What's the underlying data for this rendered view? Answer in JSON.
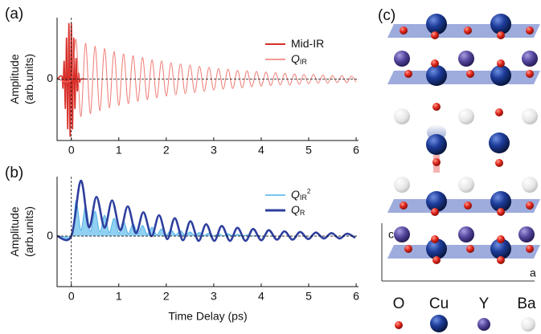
{
  "chart_data": [
    {
      "type": "line",
      "panel": "(a)",
      "ylabel": [
        "Amplitude",
        "(arb.units)"
      ],
      "xlim": [
        -0.3,
        6.05
      ],
      "xticks": [
        0,
        1,
        2,
        3,
        4,
        5,
        6
      ],
      "ylim": [
        -1.05,
        1.05
      ],
      "yticks": [
        0
      ],
      "series": [
        {
          "name": "Mid-IR",
          "color": "#d8302a",
          "width": 1.6,
          "x": [
            -0.3,
            -0.2,
            -0.175,
            -0.15,
            -0.125,
            -0.1,
            -0.075,
            -0.05,
            -0.025,
            0,
            0.025,
            0.05,
            0.075,
            0.1,
            0.125,
            0.15,
            0.175,
            0.2,
            0.3
          ],
          "values": [
            0,
            0.05,
            -0.15,
            0.3,
            -0.5,
            0.7,
            -0.85,
            0.95,
            -0.98,
            0.95,
            -0.85,
            0.7,
            -0.5,
            0.35,
            -0.2,
            0.1,
            -0.05,
            0,
            0
          ]
        },
        {
          "name": "Q",
          "subscript": "IR",
          "color": "#ef7a73",
          "width": 1,
          "x": [
            -0.3,
            0,
            0.1,
            0.2,
            0.3,
            0.4,
            0.5,
            0.6,
            0.7,
            0.8,
            0.9,
            1.0,
            1.1,
            1.2,
            1.3,
            1.4,
            1.5,
            1.6,
            1.7,
            1.8,
            1.9,
            2.0,
            2.1,
            2.2,
            2.3,
            2.4,
            2.5,
            2.6,
            2.7,
            2.8,
            2.9,
            3.0,
            3.1,
            3.2,
            3.3,
            3.4,
            3.5,
            3.6,
            3.7,
            3.8,
            3.9,
            4.0,
            4.1,
            4.2,
            4.3,
            4.4,
            4.5,
            4.6,
            4.7,
            4.8,
            4.9,
            5.0,
            5.1,
            5.2,
            5.3,
            5.4,
            5.5,
            5.6,
            5.7,
            5.8,
            5.9,
            6.0
          ],
          "values": [
            0,
            0,
            0.67,
            -0.64,
            0.61,
            -0.59,
            0.56,
            -0.54,
            0.52,
            -0.49,
            0.47,
            -0.45,
            0.43,
            -0.42,
            0.4,
            -0.38,
            0.37,
            -0.35,
            0.33,
            -0.32,
            0.31,
            -0.29,
            0.28,
            -0.27,
            0.26,
            -0.25,
            0.24,
            -0.23,
            0.22,
            -0.21,
            0.2,
            -0.19,
            0.18,
            -0.17,
            0.17,
            -0.16,
            0.15,
            -0.15,
            0.14,
            -0.13,
            0.13,
            -0.12,
            0.12,
            -0.11,
            0.11,
            -0.1,
            0.1,
            -0.1,
            0.09,
            -0.09,
            0.08,
            -0.08,
            0.08,
            -0.07,
            0.07,
            -0.07,
            0.06,
            -0.06,
            0.06,
            -0.06,
            0.05,
            -0.05
          ]
        }
      ]
    },
    {
      "type": "line",
      "panel": "(b)",
      "ylabel": [
        "Amplitude",
        "(arb.units)"
      ],
      "xlabel": "Time Delay (ps)",
      "xlim": [
        -0.3,
        6.05
      ],
      "xticks": [
        0,
        1,
        2,
        3,
        4,
        5,
        6
      ],
      "ylim": [
        -0.85,
        1
      ],
      "yticks": [
        0
      ],
      "series": [
        {
          "name": "Q",
          "subscript": "IR",
          "superscript": "2",
          "color": "#4fb2e8",
          "fill": "#7fc8f0",
          "width": 1,
          "x": [
            -0.3,
            0,
            0.1,
            0.2,
            0.3,
            0.4,
            0.5,
            0.6,
            0.7,
            0.8,
            0.9,
            1.0,
            1.1,
            1.2,
            1.3,
            1.4,
            1.5,
            1.6,
            1.7,
            1.8,
            1.9,
            2.0,
            2.1,
            2.2,
            2.3,
            2.4,
            2.5,
            2.6,
            2.7,
            2.8,
            2.9,
            3.0,
            3.1,
            3.2,
            3.3,
            3.4,
            3.5,
            3.6,
            3.7,
            3.8,
            3.9,
            4.0
          ],
          "values": [
            0,
            0,
            0.6,
            0.1,
            0.5,
            0.08,
            0.42,
            0.07,
            0.35,
            0.06,
            0.3,
            0.05,
            0.25,
            0.04,
            0.21,
            0.04,
            0.18,
            0.03,
            0.15,
            0.02,
            0.12,
            0.02,
            0.1,
            0.02,
            0.09,
            0.01,
            0.07,
            0.01,
            0.06,
            0.01,
            0.05,
            0,
            0.04,
            0,
            0.04,
            0,
            0.03,
            0,
            0.02,
            0,
            0.01,
            0
          ]
        },
        {
          "name": "Q",
          "subscript": "R",
          "color": "#2e3f9e",
          "width": 2.6,
          "x": [
            -0.3,
            0,
            0.2,
            0.37,
            0.53,
            0.7,
            0.86,
            1.03,
            1.19,
            1.36,
            1.52,
            1.69,
            1.85,
            2.02,
            2.18,
            2.35,
            2.51,
            2.68,
            2.84,
            3.01,
            3.17,
            3.34,
            3.5,
            3.67,
            3.83,
            4.0,
            4.16,
            4.33,
            4.49,
            4.66,
            4.82,
            4.99,
            5.15,
            5.32,
            5.48,
            5.65,
            5.81,
            5.98
          ],
          "values": [
            0,
            0,
            0.93,
            0.15,
            0.66,
            0.14,
            0.6,
            0.1,
            0.5,
            0.05,
            0.4,
            0,
            0.35,
            -0.05,
            0.3,
            -0.07,
            0.25,
            -0.08,
            0.2,
            -0.08,
            0.17,
            -0.08,
            0.14,
            -0.08,
            0.12,
            -0.07,
            0.1,
            -0.06,
            0.08,
            -0.06,
            0.07,
            -0.05,
            0.06,
            -0.04,
            0.05,
            -0.04,
            0.04,
            -0.03
          ]
        }
      ]
    }
  ],
  "diagram": {
    "panel": "(c)",
    "axes": [
      "c",
      "a"
    ],
    "legend": [
      "O",
      "Cu",
      "Y",
      "Ba"
    ]
  }
}
